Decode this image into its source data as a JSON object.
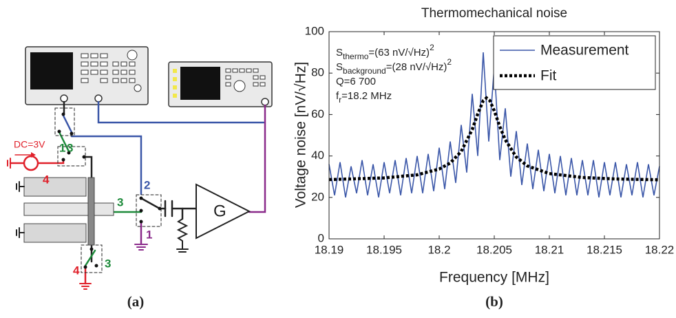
{
  "panels": [
    "(a)",
    "(b)"
  ],
  "diagram": {
    "labels": [
      "DC=3V",
      "1",
      "3",
      "4",
      "2",
      "G",
      "1",
      "4",
      "3"
    ]
  },
  "chart_data": {
    "type": "line",
    "title": "Thermomechanical noise",
    "x_label": "Frequency [MHz]",
    "y_label": "Voltage noise [nV/√Hz]",
    "xlim": [
      18.19,
      18.22
    ],
    "xticks": [
      18.19,
      18.195,
      18.2,
      18.205,
      18.21,
      18.215,
      18.22
    ],
    "ylim": [
      0,
      100
    ],
    "yticks": [
      0,
      20,
      40,
      60,
      80,
      100
    ],
    "legend": "upper right",
    "annotations": [
      {
        "text": "S",
        "sub": "thermo",
        "after": "=(63 nV/√Hz)",
        "sup": "2"
      },
      {
        "text": "S",
        "sub": "background",
        "after": "=(28 nV/√Hz)",
        "sup": "2"
      },
      {
        "text": "Q=6 700"
      },
      {
        "text": "f",
        "sub": "r",
        "after": "=18.2 MHz"
      }
    ],
    "series": [
      {
        "name": "Measurement",
        "color": "#3a56a8",
        "line_style": "solid",
        "x": [
          18.19,
          18.1905,
          18.191,
          18.1915,
          18.192,
          18.1925,
          18.193,
          18.1935,
          18.194,
          18.1945,
          18.195,
          18.1955,
          18.196,
          18.1965,
          18.197,
          18.1975,
          18.198,
          18.1985,
          18.199,
          18.1995,
          18.2,
          18.2005,
          18.201,
          18.2015,
          18.202,
          18.2025,
          18.203,
          18.2035,
          18.204,
          18.2045,
          18.205,
          18.2055,
          18.206,
          18.2065,
          18.207,
          18.2075,
          18.208,
          18.2085,
          18.209,
          18.2095,
          18.21,
          18.2105,
          18.211,
          18.2115,
          18.212,
          18.2125,
          18.213,
          18.2135,
          18.214,
          18.2145,
          18.215,
          18.2155,
          18.216,
          18.2165,
          18.217,
          18.2175,
          18.218,
          18.2185,
          18.219,
          18.2195,
          18.22
        ],
        "values": [
          36,
          21,
          37,
          20,
          35,
          22,
          38,
          21,
          36,
          20,
          37,
          22,
          38,
          21,
          39,
          22,
          40,
          22,
          41,
          23,
          44,
          24,
          47,
          27,
          55,
          32,
          70,
          40,
          90,
          47,
          83,
          38,
          63,
          30,
          52,
          26,
          46,
          24,
          43,
          23,
          41,
          22,
          40,
          21,
          39,
          21,
          38,
          21,
          38,
          20,
          37,
          21,
          37,
          20,
          36,
          21,
          37,
          20,
          36,
          21,
          35
        ]
      },
      {
        "name": "Fit",
        "color": "#000000",
        "line_style": "dotted",
        "x": [
          18.19,
          18.195,
          18.198,
          18.2,
          18.201,
          18.202,
          18.203,
          18.2035,
          18.204,
          18.2043,
          18.2046,
          18.205,
          18.2055,
          18.206,
          18.207,
          18.208,
          18.21,
          18.213,
          18.216,
          18.22
        ],
        "values": [
          28.6,
          29.4,
          30.9,
          33.7,
          36.6,
          42.2,
          52.8,
          60.3,
          66.7,
          68,
          66.7,
          61.8,
          54.2,
          47.8,
          39.5,
          35.2,
          31.5,
          29.6,
          28.9,
          28.5
        ]
      }
    ]
  }
}
